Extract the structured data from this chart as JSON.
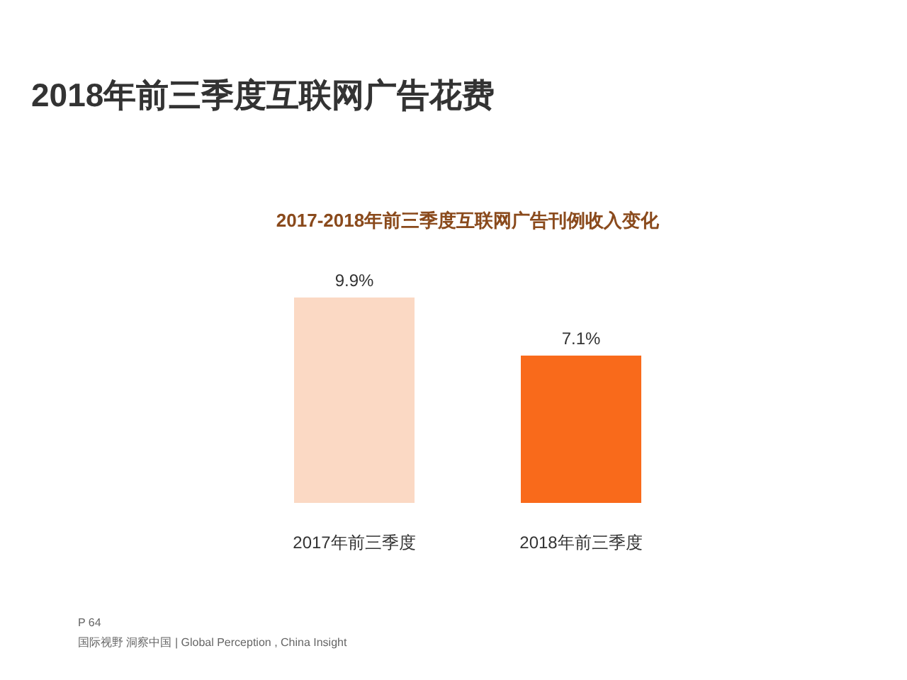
{
  "chart_data": {
    "type": "bar",
    "title": "2018年前三季度互联网广告花费",
    "subtitle": "2017-2018年前三季度互联网广告刊例收入变化",
    "categories": [
      "2017年前三季度",
      "2018年前三季度"
    ],
    "values": [
      9.9,
      7.1
    ],
    "value_labels": [
      "9.9%",
      "7.1%"
    ],
    "colors": [
      "#fbd9c4",
      "#f96a1b"
    ],
    "annotations": [
      "P 64",
      "国际视野 洞察中国 | Global Perception , China Insight"
    ]
  }
}
